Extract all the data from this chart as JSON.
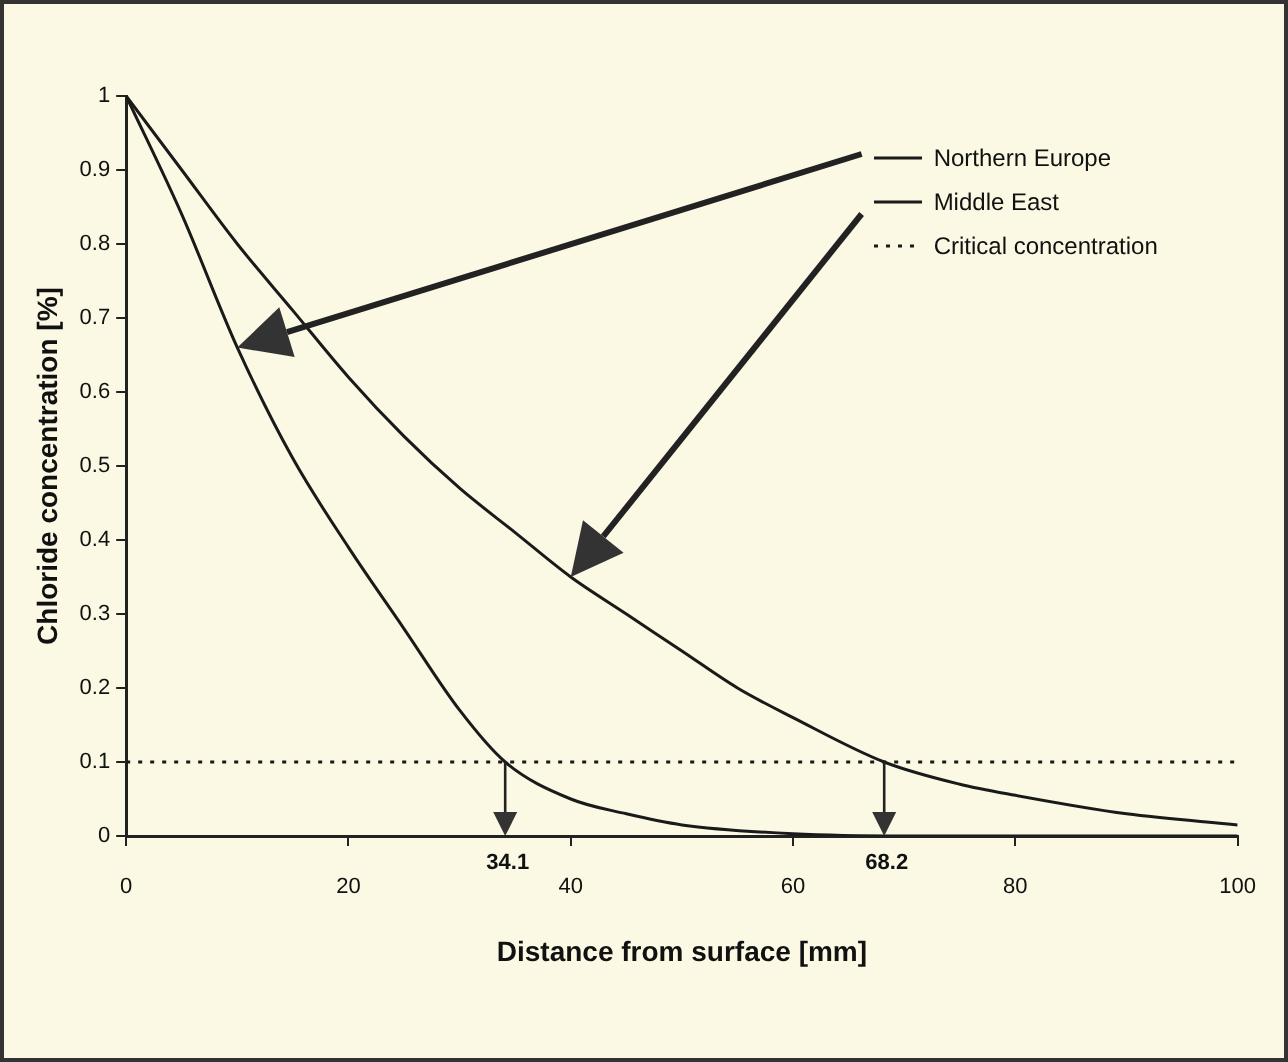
{
  "chart_data": {
    "type": "line",
    "xlabel": "Distance from surface [mm]",
    "ylabel": "Chloride concentration [%]",
    "xlim": [
      0,
      100
    ],
    "xticks": [
      0,
      20,
      40,
      60,
      80,
      100
    ],
    "ylim": [
      0,
      1
    ],
    "yticks": [
      0,
      0.1,
      0.2,
      0.3,
      0.4,
      0.5,
      0.6,
      0.7,
      0.8,
      0.9,
      1
    ],
    "grid": false,
    "legend": "top right",
    "marker": "none",
    "series": [
      {
        "name": "Northern Europe",
        "color": "#1a1a1a",
        "line_style": "solid",
        "x": [
          0,
          5,
          10,
          15,
          20,
          25,
          30,
          34.1,
          40,
          45,
          50,
          60,
          70,
          80,
          90,
          100
        ],
        "values": [
          1,
          0.84,
          0.66,
          0.51,
          0.39,
          0.28,
          0.17,
          0.1,
          0.05,
          0.03,
          0.015,
          0.003,
          0,
          0,
          0,
          0
        ]
      },
      {
        "name": "Middle East",
        "color": "#1a1a1a",
        "line_style": "solid",
        "x": [
          0,
          5,
          10,
          15,
          20,
          25,
          30,
          35,
          40,
          45,
          50,
          55,
          60,
          68.2,
          75,
          80,
          90,
          100
        ],
        "values": [
          1,
          0.9,
          0.8,
          0.71,
          0.62,
          0.54,
          0.47,
          0.41,
          0.35,
          0.3,
          0.25,
          0.2,
          0.16,
          0.1,
          0.07,
          0.055,
          0.03,
          0.015
        ]
      }
    ],
    "ref_lines": [
      {
        "axis": "y",
        "value": 0.1,
        "label": "Critical concentration",
        "color": "#1a1a1a",
        "line_style": "dotted"
      }
    ],
    "annotations": [
      "34.1",
      "68.2"
    ]
  }
}
